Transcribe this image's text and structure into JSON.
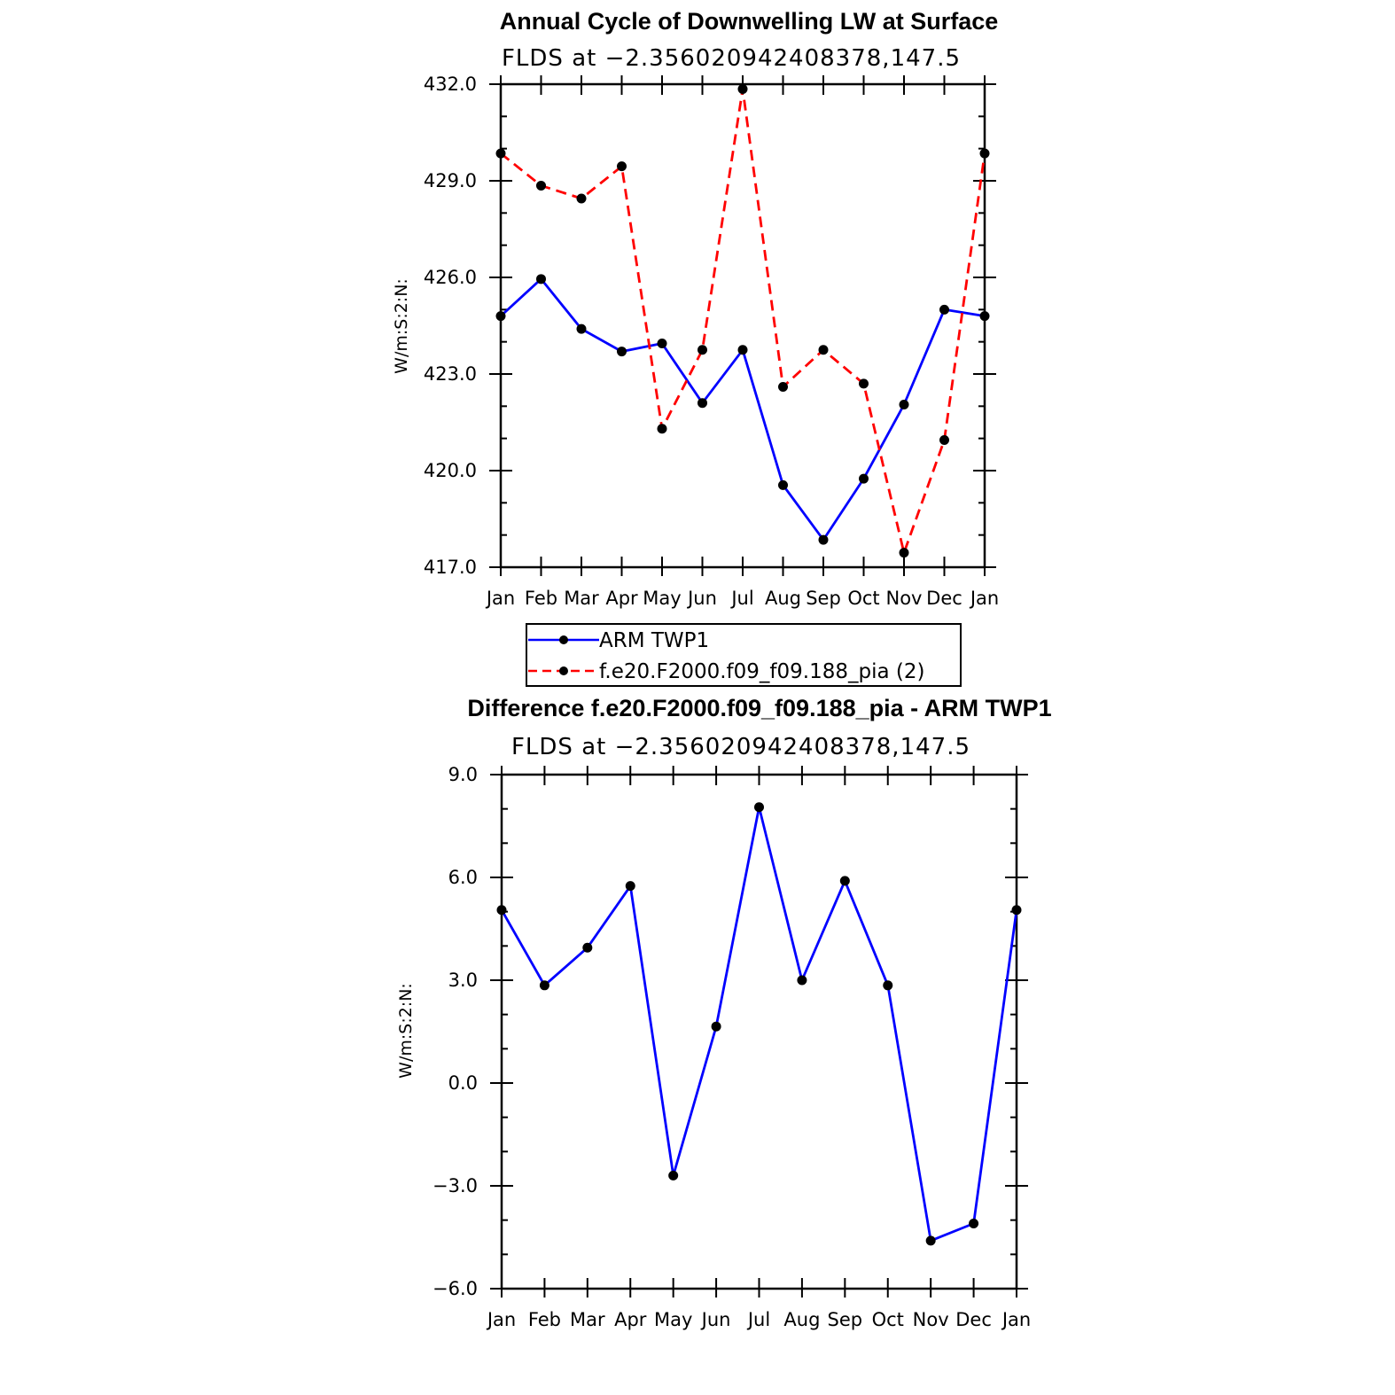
{
  "chart_data": [
    {
      "type": "line",
      "title": "Annual Cycle of Downwelling LW at Surface",
      "subtitle": "FLDS at −2.356020942408378,147.5",
      "ylabel": "W/m:S:2:N:",
      "ylim": [
        417,
        432
      ],
      "yticks": [
        "432.0",
        "429.0",
        "426.0",
        "423.0",
        "420.0",
        "417.0"
      ],
      "categories": [
        "Jan",
        "Feb",
        "Mar",
        "Apr",
        "May",
        "Jun",
        "Jul",
        "Aug",
        "Sep",
        "Oct",
        "Nov",
        "Dec",
        "Jan"
      ],
      "series": [
        {
          "name": "ARM TWP1",
          "color": "#0000ff",
          "dash": "solid",
          "values": [
            424.8,
            425.95,
            424.4,
            423.7,
            423.95,
            422.1,
            423.75,
            419.55,
            417.85,
            419.75,
            422.05,
            425.0,
            424.8
          ]
        },
        {
          "name": "f.e20.F2000.f09_f09.188_pia (2)",
          "color": "#ff0000",
          "dash": "dashed",
          "values": [
            429.85,
            428.85,
            428.45,
            429.45,
            421.3,
            423.75,
            431.85,
            422.6,
            423.75,
            422.7,
            417.45,
            420.95,
            429.85
          ]
        }
      ],
      "legend_position": "bottom"
    },
    {
      "type": "line",
      "title": "Difference f.e20.F2000.f09_f09.188_pia - ARM TWP1",
      "subtitle": "FLDS at −2.356020942408378,147.5",
      "ylabel": "W/m:S:2:N:",
      "ylim": [
        -6,
        9
      ],
      "yticks": [
        "9.0",
        "6.0",
        "3.0",
        "0.0",
        "−3.0",
        "−6.0"
      ],
      "categories": [
        "Jan",
        "Feb",
        "Mar",
        "Apr",
        "May",
        "Jun",
        "Jul",
        "Aug",
        "Sep",
        "Oct",
        "Nov",
        "Dec",
        "Jan"
      ],
      "series": [
        {
          "color": "#0000ff",
          "dash": "solid",
          "values": [
            5.05,
            2.85,
            3.95,
            5.75,
            -2.7,
            1.65,
            8.05,
            3.0,
            5.9,
            2.85,
            -4.6,
            -4.1,
            5.05
          ]
        }
      ]
    }
  ]
}
